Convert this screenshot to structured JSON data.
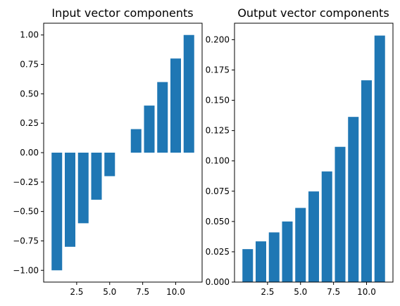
{
  "colors": {
    "bar": "#1f77b4",
    "axis": "#000000",
    "background": "#ffffff"
  },
  "chart_data": [
    {
      "type": "bar",
      "title": "Input vector components",
      "xlabel": "",
      "ylabel": "",
      "x": [
        1,
        2,
        3,
        4,
        5,
        6,
        7,
        8,
        9,
        10,
        11
      ],
      "values": [
        -1.0,
        -0.8,
        -0.6,
        -0.4,
        -0.2,
        0.0,
        0.2,
        0.4,
        0.6,
        0.8,
        1.0
      ],
      "xlim": [
        0.0,
        12.0
      ],
      "ylim": [
        -1.1,
        1.1
      ],
      "xticks": [
        2.5,
        5.0,
        7.5,
        10.0
      ],
      "xtick_labels": [
        "2.5",
        "5.0",
        "7.5",
        "10.0"
      ],
      "yticks": [
        -1.0,
        -0.75,
        -0.5,
        -0.25,
        0.0,
        0.25,
        0.5,
        0.75,
        1.0
      ],
      "ytick_labels": [
        "−1.00",
        "−0.75",
        "−0.50",
        "−0.25",
        "0.00",
        "0.25",
        "0.50",
        "0.75",
        "1.00"
      ],
      "grid": false,
      "legend": "none"
    },
    {
      "type": "bar",
      "title": "Output vector components",
      "xlabel": "",
      "ylabel": "",
      "x": [
        1,
        2,
        3,
        4,
        5,
        6,
        7,
        8,
        9,
        10,
        11
      ],
      "values": [
        0.0272,
        0.0336,
        0.041,
        0.05,
        0.0612,
        0.0748,
        0.0913,
        0.1116,
        0.1363,
        0.1665,
        0.2034
      ],
      "xlim": [
        0.0,
        12.0
      ],
      "ylim": [
        0.0,
        0.2136
      ],
      "xticks": [
        2.5,
        5.0,
        7.5,
        10.0
      ],
      "xtick_labels": [
        "2.5",
        "5.0",
        "7.5",
        "10.0"
      ],
      "yticks": [
        0.0,
        0.025,
        0.05,
        0.075,
        0.1,
        0.125,
        0.15,
        0.175,
        0.2
      ],
      "ytick_labels": [
        "0.000",
        "0.025",
        "0.050",
        "0.075",
        "0.100",
        "0.125",
        "0.150",
        "0.175",
        "0.200"
      ],
      "grid": false,
      "legend": "none"
    }
  ]
}
